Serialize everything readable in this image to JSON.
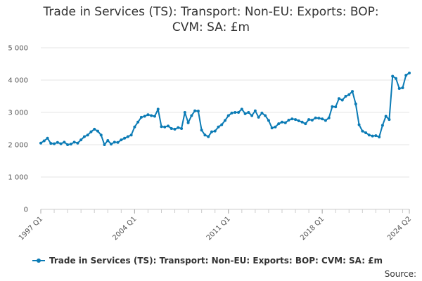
{
  "chart_data": {
    "type": "line",
    "title": "Trade in Services (TS): Transport: Non-EU: Exports: BOP:\nCVM: SA: £m",
    "xlabel": "",
    "ylabel": "",
    "x_labels": [
      "1997 Q1",
      "2004 Q1",
      "2011 Q1",
      "2018 Q1",
      "2024 Q2"
    ],
    "y_ticks": [
      0,
      1000,
      2000,
      3000,
      4000,
      5000
    ],
    "y_tick_labels": [
      "0",
      "1 000",
      "2 000",
      "3 000",
      "4 000",
      "5 000"
    ],
    "ylim": [
      0,
      5000
    ],
    "grid": true,
    "legend_position": "bottom",
    "series": [
      {
        "name": "Trade in Services (TS): Transport: Non-EU: Exports: BOP: CVM: SA: £m",
        "color": "#0b7bb5",
        "x_start": "1997 Q1",
        "x_end": "2024 Q2",
        "values": [
          2050,
          2120,
          2200,
          2040,
          2030,
          2070,
          2030,
          2080,
          2000,
          2020,
          2080,
          2050,
          2150,
          2250,
          2300,
          2400,
          2480,
          2420,
          2300,
          2000,
          2130,
          2020,
          2080,
          2070,
          2150,
          2200,
          2250,
          2300,
          2550,
          2700,
          2850,
          2880,
          2930,
          2900,
          2880,
          3100,
          2560,
          2550,
          2580,
          2500,
          2480,
          2530,
          2500,
          3000,
          2680,
          2900,
          3050,
          3040,
          2450,
          2300,
          2250,
          2400,
          2420,
          2550,
          2620,
          2750,
          2900,
          2980,
          3000,
          3000,
          3100,
          2960,
          3000,
          2900,
          3050,
          2850,
          2980,
          2900,
          2750,
          2520,
          2550,
          2650,
          2700,
          2680,
          2760,
          2800,
          2780,
          2740,
          2700,
          2650,
          2780,
          2760,
          2830,
          2820,
          2800,
          2750,
          2830,
          3180,
          3170,
          3430,
          3380,
          3500,
          3550,
          3650,
          3260,
          2620,
          2420,
          2370,
          2300,
          2270,
          2280,
          2240,
          2600,
          2880,
          2780,
          4120,
          4050,
          3740,
          3760,
          4150,
          4220
        ]
      }
    ]
  },
  "legend": {
    "label": "Trade in Services (TS): Transport: Non-EU: Exports: BOP: CVM: SA: £m"
  },
  "source": {
    "label": "Source:"
  }
}
